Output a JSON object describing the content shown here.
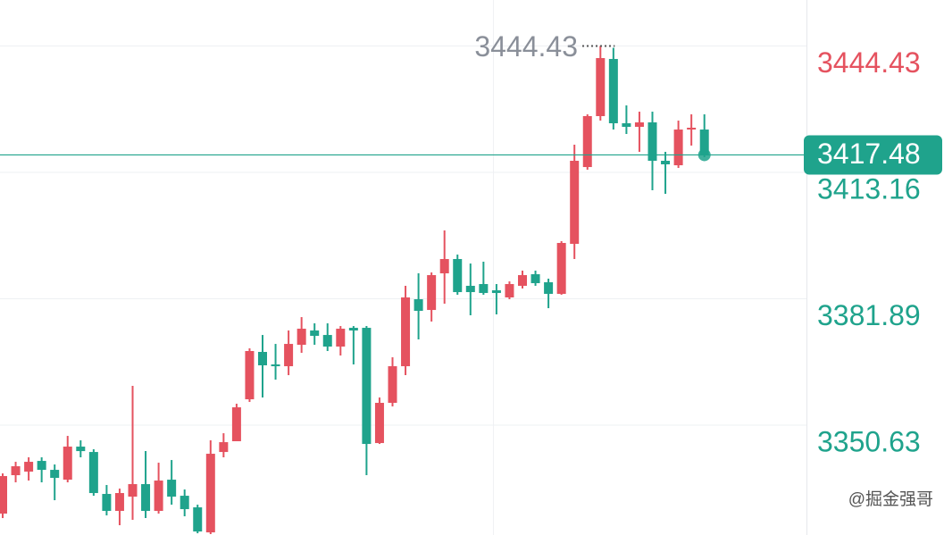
{
  "chart_data": {
    "type": "candlestick",
    "open": [
      3328.73,
      3338.24,
      3339.12,
      3341.77,
      3339.56,
      3337.13,
      3345.31,
      3343.98,
      3333.6,
      3329.4,
      3332.93,
      3336.03,
      3329.4,
      3337.13,
      3333.15,
      3330.28,
      3324.09,
      3343.98,
      3346.64,
      3357.02,
      3368.74,
      3365.64,
      3365.2,
      3370.5,
      3374.04,
      3372.93,
      3370.06,
      3374.7,
      3374.7,
      3346.19,
      3356.14,
      3365.2,
      3381.77,
      3379.12,
      3388.18,
      3391.72,
      3385.09,
      3385.53,
      3383.98,
      3382.22,
      3385.09,
      3387.96,
      3385.97,
      3383.1,
      3395.48,
      3414.48,
      3427.08,
      3441.22,
      3425.31,
      3424.43,
      3425.53,
      3416.03,
      3414.92,
      3423.76,
      3423.76
    ],
    "high": [
      3338.68,
      3341.55,
      3342.66,
      3342.66,
      3340.89,
      3347.96,
      3346.86,
      3344.65,
      3335.81,
      3334.92,
      3360.34,
      3344.2,
      3341.33,
      3341.99,
      3334.7,
      3330.94,
      3346.86,
      3348.62,
      3355.92,
      3369.62,
      3372.93,
      3370.72,
      3374.04,
      3377.35,
      3375.81,
      3375.81,
      3375.14,
      3375.14,
      3375.14,
      3357.46,
      3367.41,
      3385.09,
      3388.18,
      3388.4,
      3398.79,
      3392.82,
      3390.61,
      3391.06,
      3385.53,
      3386.19,
      3388.85,
      3388.85,
      3386.86,
      3396.14,
      3420.01,
      3427.52,
      3444.43,
      3443.98,
      3429.73,
      3428.18,
      3428.18,
      3418.24,
      3425.97,
      3427.52,
      3427.52
    ],
    "low": [
      3327.63,
      3336.47,
      3336.91,
      3336.47,
      3332.05,
      3336.47,
      3342.66,
      3333.15,
      3328.29,
      3325.86,
      3327.19,
      3327.63,
      3328.73,
      3330.94,
      3328.07,
      3323.87,
      3323.65,
      3342.66,
      3346.64,
      3356.36,
      3357.46,
      3361.88,
      3362.99,
      3368.51,
      3370.5,
      3368.96,
      3367.85,
      3365.64,
      3338.24,
      3345.97,
      3355.25,
      3362.99,
      3371.83,
      3376.25,
      3380.67,
      3382.88,
      3377.8,
      3382.88,
      3378.02,
      3381.77,
      3384.43,
      3385.09,
      3379.56,
      3382.88,
      3391.72,
      3413.82,
      3425.97,
      3423.76,
      3422.66,
      3418.24,
      3408.74,
      3407.85,
      3414.26,
      3419.79,
      3416.91
    ],
    "close": [
      3338.02,
      3340.45,
      3341.55,
      3339.56,
      3337.57,
      3345.31,
      3344.2,
      3333.82,
      3329.4,
      3333.82,
      3336.03,
      3329.4,
      3336.91,
      3332.93,
      3329.84,
      3324.31,
      3343.54,
      3346.41,
      3355.03,
      3368.96,
      3365.42,
      3365.2,
      3370.72,
      3374.48,
      3372.71,
      3370.06,
      3374.48,
      3374.04,
      3345.97,
      3356.14,
      3365.2,
      3382.22,
      3378.9,
      3387.74,
      3391.72,
      3383.54,
      3383.54,
      3383.32,
      3383.32,
      3385.53,
      3387.74,
      3385.75,
      3383.1,
      3395.7,
      3416.03,
      3427.08,
      3441.44,
      3425.31,
      3424.43,
      3425.53,
      3416.03,
      3415.15,
      3423.76,
      3424.21,
      3417.48
    ],
    "ylim": [
      3323.44,
      3455.81
    ],
    "yticks": [
      3444.43,
      3413.16,
      3381.89,
      3350.63
    ],
    "up_color": "#e5525f",
    "down_color": "#1fa38c",
    "grid": true,
    "watermark": "@掘金强哥"
  }
}
